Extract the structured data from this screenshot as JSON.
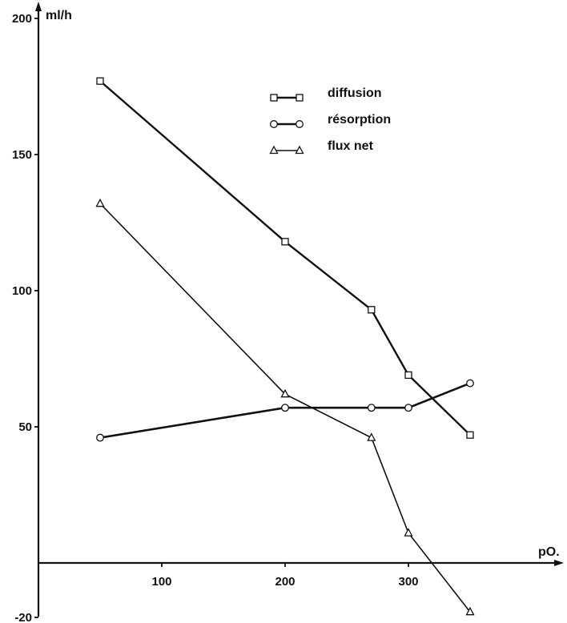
{
  "chart_data": {
    "type": "line",
    "xlabel": "pO.",
    "ylabel": "ml/h",
    "xlim": [
      0,
      360
    ],
    "ylim": [
      -20,
      200
    ],
    "xticks": [
      100,
      200,
      300
    ],
    "yticks": [
      -20,
      50,
      100,
      150,
      200
    ],
    "grid": false,
    "legend_position": "top-right",
    "series": [
      {
        "name": "diffusion",
        "marker": "square",
        "x": [
          50,
          200,
          270,
          300,
          350
        ],
        "y": [
          177,
          118,
          93,
          69,
          47
        ]
      },
      {
        "name": "résorption",
        "marker": "circle",
        "x": [
          50,
          200,
          270,
          300,
          350
        ],
        "y": [
          46,
          57,
          57,
          57,
          66
        ]
      },
      {
        "name": "flux net",
        "marker": "triangle",
        "x": [
          50,
          200,
          270,
          300,
          350
        ],
        "y": [
          132,
          62,
          46,
          11,
          -18
        ]
      }
    ]
  }
}
